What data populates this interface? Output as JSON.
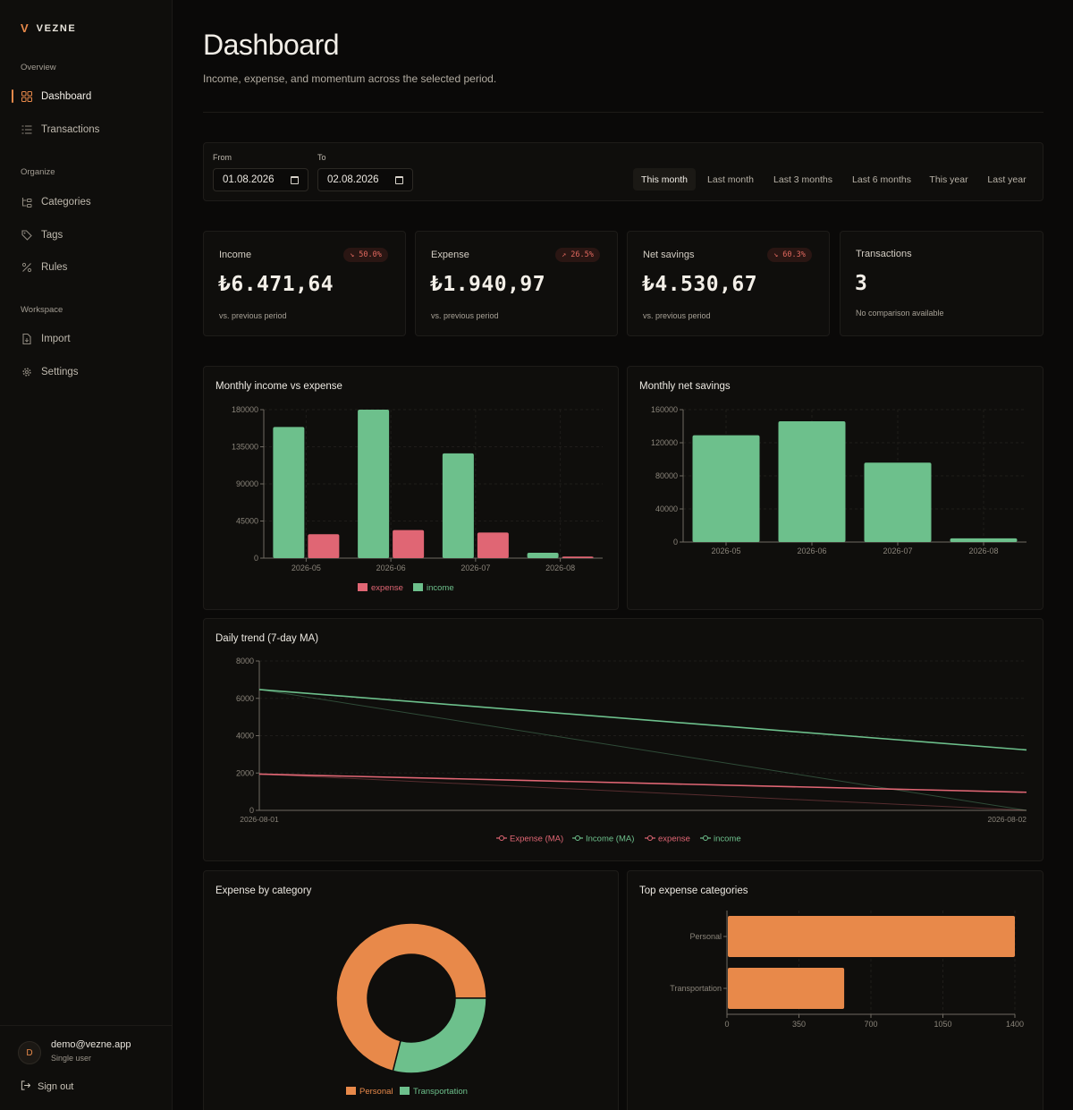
{
  "app": {
    "brand": "VEZNE",
    "brand_mark": "V"
  },
  "sidebar": {
    "groups": [
      {
        "label": "Overview",
        "items": [
          {
            "label": "Dashboard",
            "icon": "grid-icon",
            "active": true
          },
          {
            "label": "Transactions",
            "icon": "list-icon"
          }
        ]
      },
      {
        "label": "Organize",
        "items": [
          {
            "label": "Categories",
            "icon": "tree-icon"
          },
          {
            "label": "Tags",
            "icon": "tag-icon"
          },
          {
            "label": "Rules",
            "icon": "percent-icon"
          }
        ]
      },
      {
        "label": "Workspace",
        "items": [
          {
            "label": "Import",
            "icon": "file-icon"
          },
          {
            "label": "Settings",
            "icon": "gear-icon"
          }
        ]
      }
    ],
    "user": {
      "initial": "D",
      "email": "demo@vezne.app",
      "role": "Single user"
    },
    "signout_label": "Sign out"
  },
  "header": {
    "title": "Dashboard",
    "subtitle": "Income, expense, and momentum across the selected period."
  },
  "filters": {
    "from_label": "From",
    "from_value": "01.08.2026",
    "to_label": "To",
    "to_value": "02.08.2026",
    "ranges": [
      "This month",
      "Last month",
      "Last 3 months",
      "Last 6 months",
      "This year",
      "Last year"
    ],
    "selected_range": "This month"
  },
  "kpis": [
    {
      "label": "Income",
      "value": "₺6.471,64",
      "badge": "↘ 50.0%",
      "note": "vs. previous period"
    },
    {
      "label": "Expense",
      "value": "₺1.940,97",
      "badge": "↗ 26.5%",
      "note": "vs. previous period"
    },
    {
      "label": "Net savings",
      "value": "₺4.530,67",
      "badge": "↘ 60.3%",
      "note": "vs. previous period"
    },
    {
      "label": "Transactions",
      "value": "3",
      "badge": "",
      "note": "No comparison available"
    }
  ],
  "colors": {
    "accent": "#e8894a",
    "income": "#6dc08c",
    "expense": "#e06674",
    "category": "#e8894a"
  },
  "chart_data": [
    {
      "id": "monthly_income_expense",
      "type": "bar",
      "title": "Monthly income vs expense",
      "categories": [
        "2026-05",
        "2026-06",
        "2026-07",
        "2026-08"
      ],
      "series": [
        {
          "name": "income",
          "values": [
            159000,
            180000,
            127000,
            6500
          ]
        },
        {
          "name": "expense",
          "values": [
            29000,
            34000,
            31000,
            1900
          ]
        }
      ],
      "ylim": [
        0,
        180000
      ],
      "yticks": [
        0,
        45000,
        90000,
        135000,
        180000
      ],
      "legend": [
        "expense",
        "income"
      ]
    },
    {
      "id": "monthly_net_savings",
      "type": "bar",
      "title": "Monthly net savings",
      "categories": [
        "2026-05",
        "2026-06",
        "2026-07",
        "2026-08"
      ],
      "values": [
        129000,
        146000,
        96000,
        4500
      ],
      "ylim": [
        0,
        160000
      ],
      "yticks": [
        0,
        40000,
        80000,
        120000,
        160000
      ]
    },
    {
      "id": "daily_trend",
      "type": "line",
      "title": "Daily trend (7-day MA)",
      "x": [
        "2026-08-01",
        "2026-08-02"
      ],
      "series": [
        {
          "name": "Expense (MA)",
          "values": [
            1941,
            970
          ]
        },
        {
          "name": "Income (MA)",
          "values": [
            6472,
            3236
          ]
        },
        {
          "name": "expense",
          "values": [
            1941,
            0
          ]
        },
        {
          "name": "income",
          "values": [
            6472,
            0
          ]
        }
      ],
      "ylim": [
        0,
        8000
      ],
      "yticks": [
        0,
        2000,
        4000,
        6000,
        8000
      ]
    },
    {
      "id": "expense_by_category",
      "type": "pie",
      "title": "Expense by category",
      "labels": [
        "Personal",
        "Transportation"
      ],
      "values": [
        1400,
        570
      ]
    },
    {
      "id": "top_expense_categories",
      "type": "bar",
      "orientation": "horizontal",
      "title": "Top expense categories",
      "categories": [
        "Personal",
        "Transportation"
      ],
      "values": [
        1400,
        570
      ],
      "xlim": [
        0,
        1400
      ],
      "xticks": [
        0,
        350,
        700,
        1050,
        1400
      ]
    }
  ]
}
